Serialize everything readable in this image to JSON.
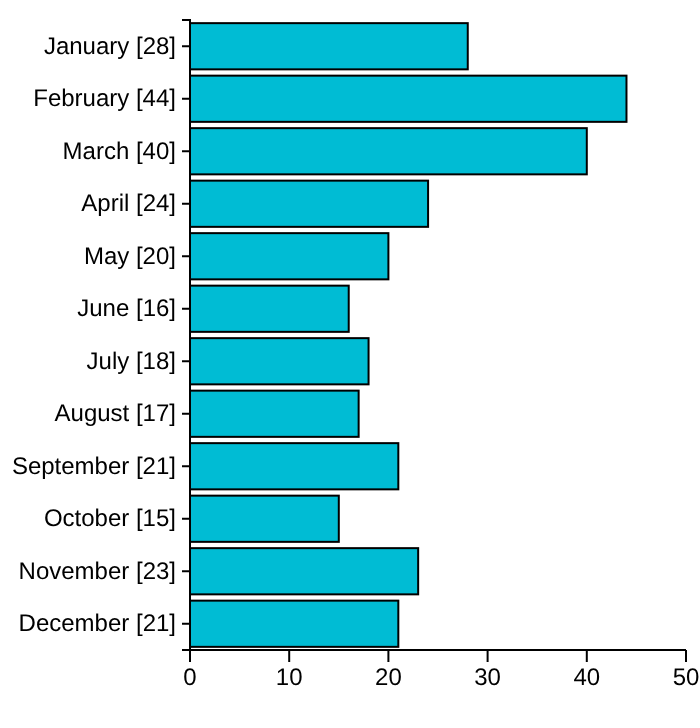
{
  "chart_data": {
    "type": "bar",
    "orientation": "horizontal",
    "categories": [
      "January [28]",
      "February [44]",
      "March [40]",
      "April [24]",
      "May [20]",
      "June [16]",
      "July [18]",
      "August [17]",
      "September [21]",
      "October [15]",
      "November [23]",
      "December [21]"
    ],
    "values": [
      28,
      44,
      40,
      24,
      20,
      16,
      18,
      17,
      21,
      15,
      23,
      21
    ],
    "color": "#00bcd4",
    "xlim": [
      0,
      50
    ],
    "xticks": [
      0,
      10,
      20,
      30,
      40,
      50
    ],
    "grid": false
  }
}
